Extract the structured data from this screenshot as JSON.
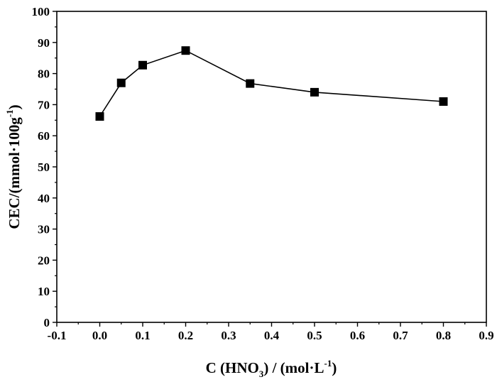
{
  "chart_data": {
    "type": "line",
    "title": "",
    "xlabel": {
      "prefix": "C (HNO",
      "sub": "3",
      "mid": ") / (mol·L",
      "sup": "-1",
      "suffix": ")"
    },
    "ylabel": {
      "prefix": "CEC/(mmol·100g",
      "sup": "-1",
      "suffix": ")"
    },
    "xlim": [
      -0.1,
      0.9
    ],
    "ylim": [
      0,
      100
    ],
    "xticks": [
      "-0.1",
      "0.0",
      "0.1",
      "0.2",
      "0.3",
      "0.4",
      "0.5",
      "0.6",
      "0.7",
      "0.8",
      "0.9"
    ],
    "yticks": [
      "0",
      "10",
      "20",
      "30",
      "40",
      "50",
      "60",
      "70",
      "80",
      "90",
      "100"
    ],
    "grid": false,
    "marker": "square",
    "color": "#000000",
    "series": [
      {
        "x": [
          0.0,
          0.05,
          0.1,
          0.2,
          0.35,
          0.5,
          0.8
        ],
        "y": [
          66.2,
          77.0,
          82.7,
          87.4,
          76.8,
          74.0,
          71.0
        ]
      }
    ]
  }
}
